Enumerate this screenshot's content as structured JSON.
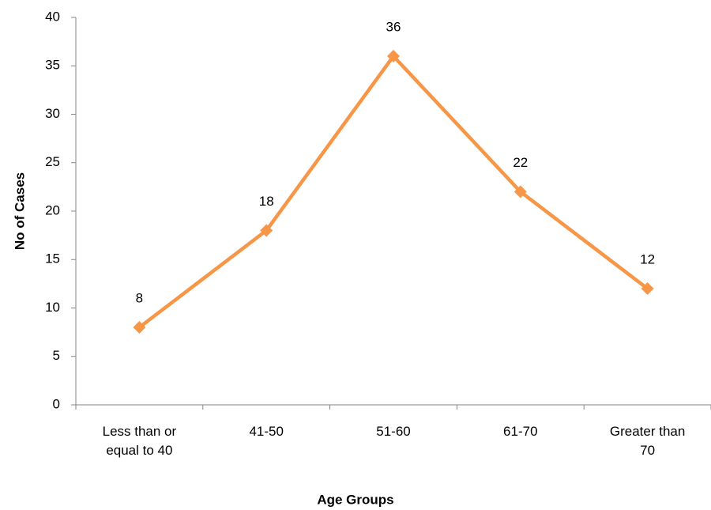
{
  "chart_data": {
    "type": "line",
    "x_label": "Age Groups",
    "y_label": "No of Cases",
    "categories": [
      "Less than or equal to 40",
      "41-50",
      "51-60",
      "61-70",
      "Greater than 70"
    ],
    "series": [
      {
        "name": "No of Cases",
        "color": "#f79646",
        "values": [
          8,
          18,
          36,
          22,
          12
        ]
      }
    ],
    "ylim": [
      0,
      40
    ],
    "yticks": [
      0,
      5,
      10,
      15,
      20,
      25,
      30,
      35,
      40
    ],
    "data_labels": true
  }
}
